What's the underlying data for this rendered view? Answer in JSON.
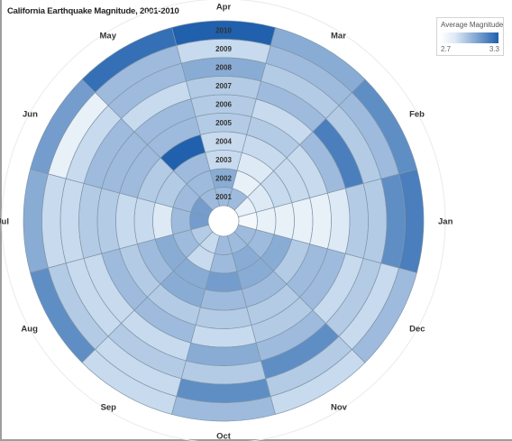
{
  "title": "California Earthquake Magnitude, 2001-2010",
  "legend": {
    "title": "Average Magnitude",
    "min_label": "2.7",
    "max_label": "3.3",
    "colors": [
      "#ffffff",
      "#dde9f5",
      "#2060ad"
    ]
  },
  "chart_data": {
    "type": "heatmap",
    "subtype": "radial",
    "title": "California Earthquake Magnitude, 2001-2010",
    "months": [
      "Jan",
      "Feb",
      "Mar",
      "Apr",
      "May",
      "Jun",
      "Jul",
      "Aug",
      "Sep",
      "Oct",
      "Nov",
      "Dec"
    ],
    "years": [
      "2001",
      "2002",
      "2003",
      "2004",
      "2005",
      "2006",
      "2007",
      "2008",
      "2009",
      "2010"
    ],
    "value_range": [
      2.7,
      3.3
    ],
    "value_label": "Average Magnitude",
    "values": [
      [
        2.75,
        2.8,
        2.8,
        2.8,
        2.8,
        2.85,
        2.95,
        2.95,
        3.15,
        3.2
      ],
      [
        2.8,
        2.85,
        2.9,
        2.9,
        2.9,
        3.0,
        3.2,
        2.95,
        3.0,
        3.15
      ],
      [
        3.0,
        2.8,
        2.85,
        2.9,
        2.95,
        2.9,
        3.0,
        2.95,
        3.0,
        3.05
      ],
      [
        3.0,
        3.05,
        2.9,
        2.9,
        2.95,
        2.95,
        2.95,
        3.05,
        2.9,
        3.3
      ],
      [
        3.0,
        3.0,
        3.0,
        3.3,
        3.0,
        3.0,
        2.9,
        3.0,
        3.0,
        3.25
      ],
      [
        3.1,
        3.0,
        2.95,
        2.95,
        3.0,
        3.0,
        3.0,
        2.9,
        2.8,
        3.1
      ],
      [
        3.1,
        3.0,
        2.85,
        2.9,
        2.9,
        2.95,
        2.95,
        2.9,
        2.9,
        3.05
      ],
      [
        2.95,
        3.0,
        3.05,
        3.0,
        2.95,
        3.0,
        2.9,
        2.9,
        2.95,
        3.15
      ],
      [
        2.9,
        2.9,
        3.05,
        3.05,
        2.95,
        3.0,
        2.9,
        2.95,
        2.9,
        2.9
      ],
      [
        3.0,
        3.0,
        3.1,
        3.0,
        2.95,
        2.9,
        3.05,
        2.95,
        3.15,
        3.0
      ],
      [
        3.0,
        3.05,
        3.05,
        3.0,
        2.95,
        2.95,
        3.0,
        3.15,
        2.95,
        2.9
      ],
      [
        3.0,
        3.0,
        3.05,
        2.95,
        3.0,
        3.0,
        2.9,
        2.95,
        2.9,
        3.0
      ]
    ]
  }
}
